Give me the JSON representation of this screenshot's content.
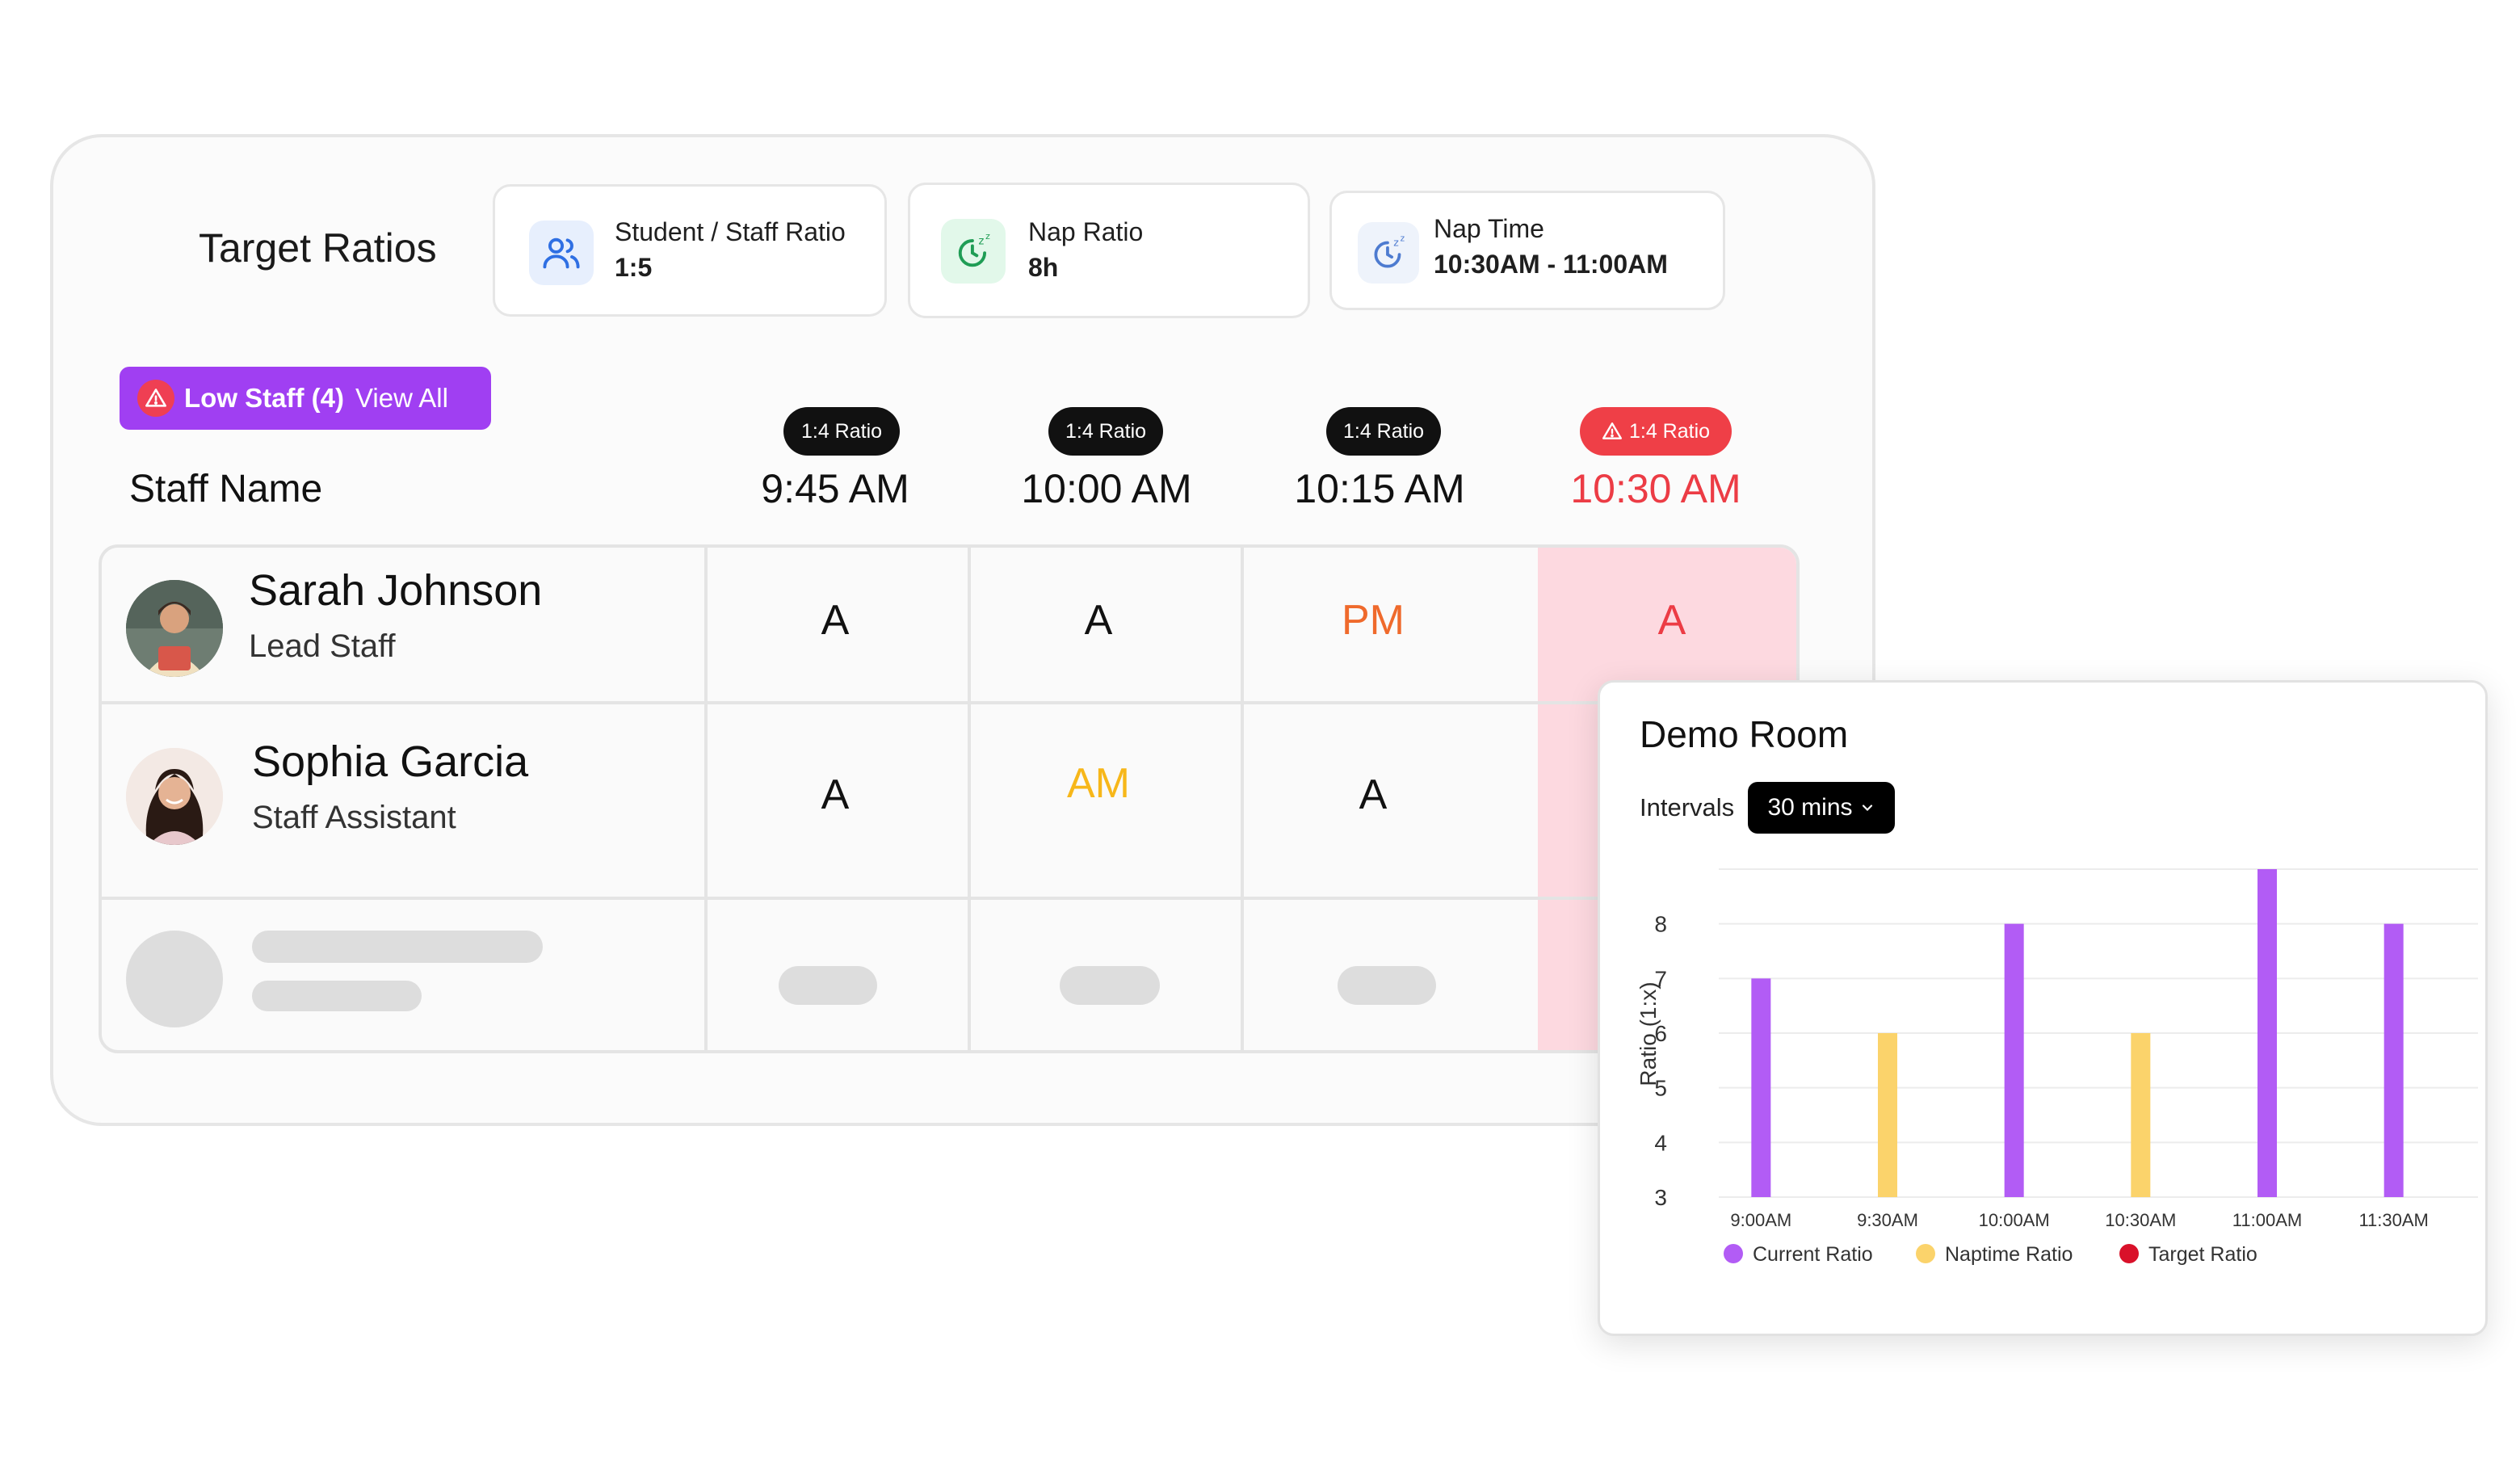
{
  "target_ratios": {
    "title": "Target Ratios",
    "cards": [
      {
        "label": "Student / Staff Ratio",
        "value": "1:5",
        "icon": "users-icon"
      },
      {
        "label": "Nap Ratio",
        "value": "8h",
        "icon": "sleep-timer-icon"
      },
      {
        "label": "Nap Time",
        "value": "10:30AM - 11:00AM",
        "icon": "sleep-clock-icon"
      }
    ]
  },
  "alert_badge": {
    "label": "Low Staff (4)",
    "link": "View All"
  },
  "table": {
    "name_header": "Staff Name",
    "columns": [
      {
        "ratio": "1:4 Ratio",
        "time": "9:45 AM",
        "alert": false
      },
      {
        "ratio": "1:4 Ratio",
        "time": "10:00 AM",
        "alert": false
      },
      {
        "ratio": "1:4 Ratio",
        "time": "10:15 AM",
        "alert": false
      },
      {
        "ratio": "1:4 Ratio",
        "time": "10:30 AM",
        "alert": true
      }
    ],
    "rows": [
      {
        "name": "Sarah Johnson",
        "role": "Lead Staff",
        "cells": [
          "A",
          "A",
          "PM",
          "A"
        ]
      },
      {
        "name": "Sophia Garcia",
        "role": "Staff Assistant",
        "cells": [
          "A",
          "AM",
          "A",
          ""
        ]
      }
    ]
  },
  "colors": {
    "accent_purple": "#a03ff2",
    "alert_red": "#ef3f47",
    "pm_orange": "#ef6a2c",
    "am_yellow": "#f7b71a",
    "bar_purple": "#b25cf5",
    "bar_yellow": "#fbd36b",
    "target_red": "#d9112a"
  },
  "demo_room": {
    "title": "Demo Room",
    "intervals_label": "Intervals",
    "interval_value": "30 mins"
  },
  "chart_data": {
    "type": "bar",
    "categories": [
      "9:00AM",
      "9:30AM",
      "10:00AM",
      "10:30AM",
      "11:00AM",
      "11:30AM"
    ],
    "values": [
      7,
      6,
      8,
      6,
      9,
      8
    ],
    "bar_kind": [
      "current",
      "naptime",
      "current",
      "naptime",
      "current",
      "current"
    ],
    "ylabel": "Ratio (1:x)",
    "yticks": [
      3,
      4,
      5,
      6,
      7,
      8
    ],
    "ylim": [
      3,
      9
    ],
    "grid": true,
    "legend": [
      {
        "name": "Current Ratio",
        "color": "#b25cf5"
      },
      {
        "name": "Naptime Ratio",
        "color": "#fbd36b"
      },
      {
        "name": "Target Ratio",
        "color": "#d9112a"
      }
    ],
    "legend_position": "bottom"
  }
}
